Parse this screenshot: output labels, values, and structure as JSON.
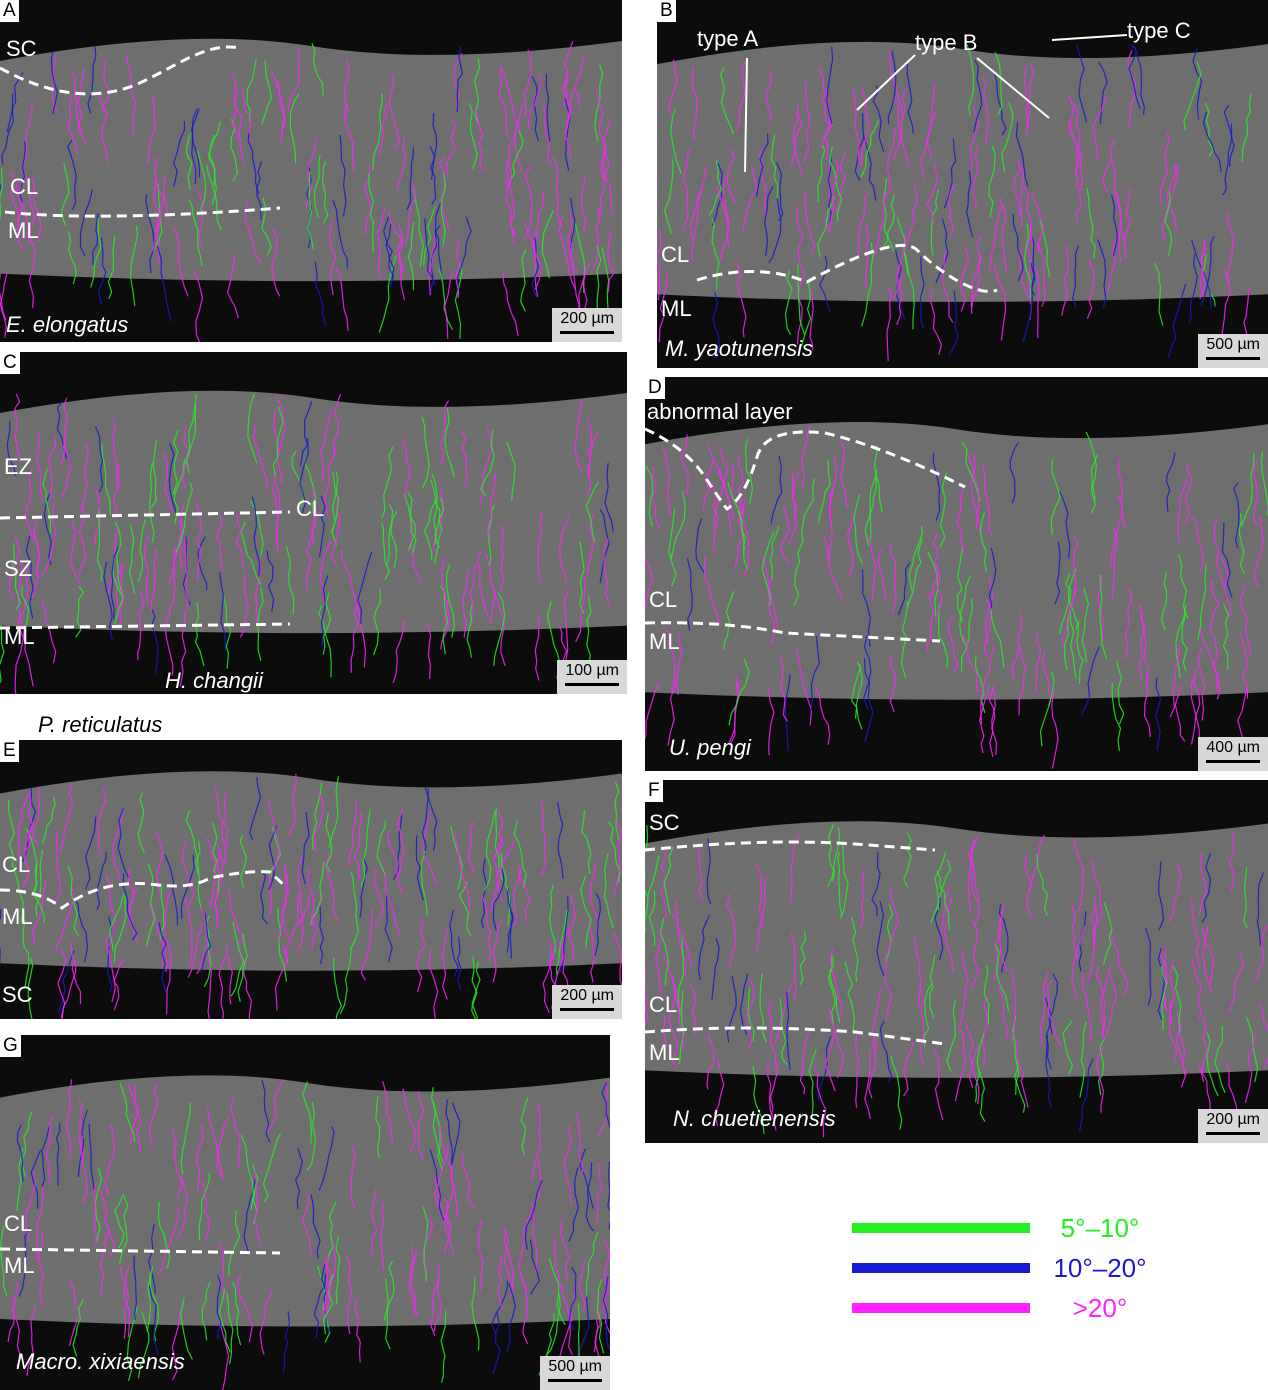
{
  "panels": [
    {
      "letter": "A",
      "species": "E. elongatus",
      "scale_bar": "200 µm",
      "labels": [
        "SC",
        "CL",
        "ML"
      ]
    },
    {
      "letter": "B",
      "species": "M. yaotunensis",
      "scale_bar": "500 µm",
      "labels": [
        "type A",
        "type B",
        "type C",
        "CL",
        "ML"
      ]
    },
    {
      "letter": "C",
      "species": "H. changii",
      "scale_bar": "100 µm",
      "labels": [
        "EZ",
        "CL",
        "SZ",
        "ML"
      ]
    },
    {
      "letter": "D",
      "species": "U. pengi",
      "scale_bar": "400 µm",
      "labels": [
        "abnormal layer",
        "CL",
        "ML"
      ]
    },
    {
      "letter": "E",
      "species": "P. reticulatus",
      "scale_bar": "200 µm",
      "labels": [
        "CL",
        "ML",
        "SC"
      ]
    },
    {
      "letter": "F",
      "species": "N. chuetienensis",
      "scale_bar": "200 µm",
      "labels": [
        "SC",
        "CL",
        "ML"
      ]
    },
    {
      "letter": "G",
      "species": "Macro. xixiaensis",
      "scale_bar": "500 µm",
      "labels": [
        "CL",
        "ML"
      ]
    }
  ],
  "legend": [
    {
      "label": "5°–10°",
      "color": "#22ee22"
    },
    {
      "label": "10°–20°",
      "color": "#1a1ad0"
    },
    {
      "label": ">20°",
      "color": "#ff22ff"
    }
  ]
}
